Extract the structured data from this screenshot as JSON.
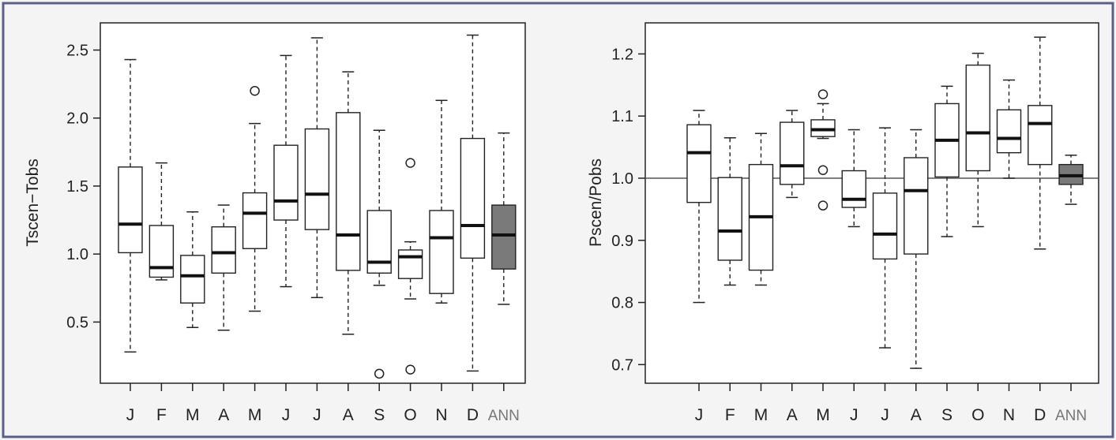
{
  "chart_data": [
    {
      "type": "box",
      "title": "",
      "xlabel": "",
      "ylabel": "Tscen−Tobs",
      "ylim": [
        0.05,
        2.7
      ],
      "yticks": [
        0.5,
        1.0,
        1.5,
        2.0,
        2.5
      ],
      "ytick_labels": [
        "0.5",
        "1.0",
        "1.5",
        "2.0",
        "2.5"
      ],
      "reference_line": null,
      "categories": [
        "J",
        "F",
        "M",
        "A",
        "M",
        "J",
        "J",
        "A",
        "S",
        "O",
        "N",
        "D",
        "ANN"
      ],
      "boxes": [
        {
          "whisker_low": 0.28,
          "q1": 1.01,
          "median": 1.22,
          "q3": 1.64,
          "whisker_high": 2.43,
          "outliers": []
        },
        {
          "whisker_low": 0.81,
          "q1": 0.83,
          "median": 0.9,
          "q3": 1.21,
          "whisker_high": 1.67,
          "outliers": []
        },
        {
          "whisker_low": 0.46,
          "q1": 0.64,
          "median": 0.84,
          "q3": 0.99,
          "whisker_high": 1.31,
          "outliers": []
        },
        {
          "whisker_low": 0.44,
          "q1": 0.86,
          "median": 1.01,
          "q3": 1.2,
          "whisker_high": 1.36,
          "outliers": []
        },
        {
          "whisker_low": 0.58,
          "q1": 1.04,
          "median": 1.3,
          "q3": 1.45,
          "whisker_high": 1.96,
          "outliers": [
            2.2
          ]
        },
        {
          "whisker_low": 0.76,
          "q1": 1.25,
          "median": 1.39,
          "q3": 1.8,
          "whisker_high": 2.46,
          "outliers": []
        },
        {
          "whisker_low": 0.68,
          "q1": 1.18,
          "median": 1.44,
          "q3": 1.92,
          "whisker_high": 2.59,
          "outliers": []
        },
        {
          "whisker_low": 0.41,
          "q1": 0.88,
          "median": 1.14,
          "q3": 2.04,
          "whisker_high": 2.34,
          "outliers": []
        },
        {
          "whisker_low": 0.77,
          "q1": 0.86,
          "median": 0.94,
          "q3": 1.32,
          "whisker_high": 1.91,
          "outliers": [
            0.12
          ]
        },
        {
          "whisker_low": 0.67,
          "q1": 0.82,
          "median": 0.98,
          "q3": 1.03,
          "whisker_high": 1.09,
          "outliers": [
            1.67,
            0.15
          ]
        },
        {
          "whisker_low": 0.64,
          "q1": 0.71,
          "median": 1.12,
          "q3": 1.32,
          "whisker_high": 2.13,
          "outliers": []
        },
        {
          "whisker_low": 0.14,
          "q1": 0.97,
          "median": 1.21,
          "q3": 1.85,
          "whisker_high": 2.61,
          "outliers": []
        },
        {
          "whisker_low": 0.63,
          "q1": 0.89,
          "median": 1.14,
          "q3": 1.36,
          "whisker_high": 1.89,
          "outliers": []
        }
      ],
      "highlight_index": 12,
      "colors": {
        "box": "#ffffff",
        "highlight_box": "#7a7a7a",
        "stroke": "#222222"
      }
    },
    {
      "type": "box",
      "title": "",
      "xlabel": "",
      "ylabel": "Pscen/Pobs",
      "ylim": [
        0.67,
        1.25
      ],
      "yticks": [
        0.7,
        0.8,
        0.9,
        1.0,
        1.1,
        1.2
      ],
      "ytick_labels": [
        "0.7",
        "0.8",
        "0.9",
        "1.0",
        "1.1",
        "1.2"
      ],
      "reference_line": 1.0,
      "categories": [
        "J",
        "F",
        "M",
        "A",
        "M",
        "J",
        "J",
        "A",
        "S",
        "O",
        "N",
        "D",
        "ANN"
      ],
      "boxes": [
        {
          "whisker_low": 0.8,
          "q1": 0.961,
          "median": 1.041,
          "q3": 1.086,
          "whisker_high": 1.109,
          "outliers": []
        },
        {
          "whisker_low": 0.828,
          "q1": 0.868,
          "median": 0.915,
          "q3": 1.001,
          "whisker_high": 1.065,
          "outliers": []
        },
        {
          "whisker_low": 0.828,
          "q1": 0.852,
          "median": 0.938,
          "q3": 1.022,
          "whisker_high": 1.072,
          "outliers": []
        },
        {
          "whisker_low": 0.969,
          "q1": 0.99,
          "median": 1.02,
          "q3": 1.09,
          "whisker_high": 1.109,
          "outliers": []
        },
        {
          "whisker_low": 1.064,
          "q1": 1.067,
          "median": 1.078,
          "q3": 1.094,
          "whisker_high": 1.12,
          "outliers": [
            1.135,
            1.013,
            0.956
          ]
        },
        {
          "whisker_low": 0.922,
          "q1": 0.953,
          "median": 0.966,
          "q3": 1.012,
          "whisker_high": 1.078,
          "outliers": []
        },
        {
          "whisker_low": 0.727,
          "q1": 0.87,
          "median": 0.91,
          "q3": 0.976,
          "whisker_high": 1.081,
          "outliers": []
        },
        {
          "whisker_low": 0.694,
          "q1": 0.878,
          "median": 0.98,
          "q3": 1.033,
          "whisker_high": 1.078,
          "outliers": []
        },
        {
          "whisker_low": 0.906,
          "q1": 1.002,
          "median": 1.061,
          "q3": 1.12,
          "whisker_high": 1.148,
          "outliers": []
        },
        {
          "whisker_low": 0.922,
          "q1": 1.012,
          "median": 1.073,
          "q3": 1.182,
          "whisker_high": 1.201,
          "outliers": []
        },
        {
          "whisker_low": 1.0,
          "q1": 1.041,
          "median": 1.064,
          "q3": 1.11,
          "whisker_high": 1.158,
          "outliers": []
        },
        {
          "whisker_low": 0.886,
          "q1": 1.022,
          "median": 1.088,
          "q3": 1.117,
          "whisker_high": 1.227,
          "outliers": []
        },
        {
          "whisker_low": 0.958,
          "q1": 0.99,
          "median": 1.004,
          "q3": 1.022,
          "whisker_high": 1.037,
          "outliers": []
        }
      ],
      "highlight_index": 12,
      "colors": {
        "box": "#ffffff",
        "highlight_box": "#7a7a7a",
        "stroke": "#222222"
      }
    }
  ]
}
